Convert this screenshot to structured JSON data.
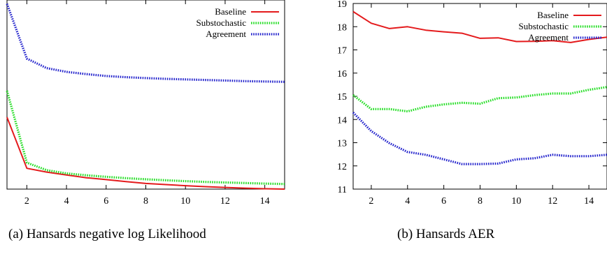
{
  "captions": {
    "a": "(a) Hansards negative log Likelihood",
    "b": "(b) Hansards AER"
  },
  "chart_data": [
    {
      "type": "line",
      "title": "",
      "xlabel": "",
      "ylabel": "",
      "xlim": [
        1,
        15
      ],
      "ylim": [
        0,
        100
      ],
      "grid": false,
      "legend_position": "top-right",
      "x_ticks": [
        2,
        4,
        6,
        8,
        10,
        12,
        14
      ],
      "y_ticks": [],
      "series": [
        {
          "name": "Baseline",
          "color": "#e41a1c",
          "style": "solid",
          "x": [
            1,
            2,
            3,
            4,
            5,
            6,
            7,
            8,
            9,
            10,
            11,
            12,
            13,
            14,
            15
          ],
          "y": [
            38,
            11,
            9,
            7.5,
            6,
            5,
            4,
            3,
            2.4,
            1.8,
            1.3,
            0.9,
            0.5,
            0.2,
            0
          ]
        },
        {
          "name": "Substochastic",
          "color": "#22dd22",
          "style": "dotted",
          "x": [
            1,
            2,
            3,
            4,
            5,
            6,
            7,
            8,
            9,
            10,
            11,
            12,
            13,
            14,
            15
          ],
          "y": [
            52,
            14,
            10,
            8.3,
            7.3,
            6.5,
            5.8,
            5.2,
            4.7,
            4.2,
            3.8,
            3.5,
            3.2,
            2.9,
            2.7
          ]
        },
        {
          "name": "Agreement",
          "color": "#2222cc",
          "style": "dotted",
          "x": [
            1,
            2,
            3,
            4,
            5,
            6,
            7,
            8,
            9,
            10,
            11,
            12,
            13,
            14,
            15
          ],
          "y": [
            98,
            69,
            64,
            62,
            60.8,
            59.8,
            59.2,
            58.7,
            58.3,
            58,
            57.7,
            57.4,
            57.1,
            56.9,
            56.7
          ]
        }
      ]
    },
    {
      "type": "line",
      "title": "",
      "xlabel": "",
      "ylabel": "",
      "xlim": [
        1,
        15
      ],
      "ylim": [
        11,
        19
      ],
      "grid": false,
      "legend_position": "top-right",
      "x_ticks": [
        2,
        4,
        6,
        8,
        10,
        12,
        14
      ],
      "y_ticks": [
        11,
        12,
        13,
        14,
        15,
        16,
        17,
        18,
        19
      ],
      "series": [
        {
          "name": "Baseline",
          "color": "#e41a1c",
          "style": "solid",
          "x": [
            1,
            2,
            3,
            4,
            5,
            6,
            7,
            8,
            9,
            10,
            11,
            12,
            13,
            14,
            15
          ],
          "y": [
            18.65,
            18.15,
            17.92,
            18.0,
            17.85,
            17.78,
            17.72,
            17.5,
            17.52,
            17.36,
            17.37,
            17.4,
            17.32,
            17.45,
            17.55
          ]
        },
        {
          "name": "Substochastic",
          "color": "#22dd22",
          "style": "dotted",
          "x": [
            1,
            2,
            3,
            4,
            5,
            6,
            7,
            8,
            9,
            10,
            11,
            12,
            13,
            14,
            15
          ],
          "y": [
            15.05,
            14.45,
            14.45,
            14.35,
            14.55,
            14.65,
            14.72,
            14.68,
            14.92,
            14.95,
            15.05,
            15.12,
            15.12,
            15.28,
            15.4
          ]
        },
        {
          "name": "Agreement",
          "color": "#2222cc",
          "style": "dotted",
          "x": [
            1,
            2,
            3,
            4,
            5,
            6,
            7,
            8,
            9,
            10,
            11,
            12,
            13,
            14,
            15
          ],
          "y": [
            14.3,
            13.5,
            12.98,
            12.6,
            12.48,
            12.28,
            12.08,
            12.08,
            12.1,
            12.28,
            12.33,
            12.48,
            12.42,
            12.42,
            12.48
          ]
        }
      ]
    }
  ]
}
